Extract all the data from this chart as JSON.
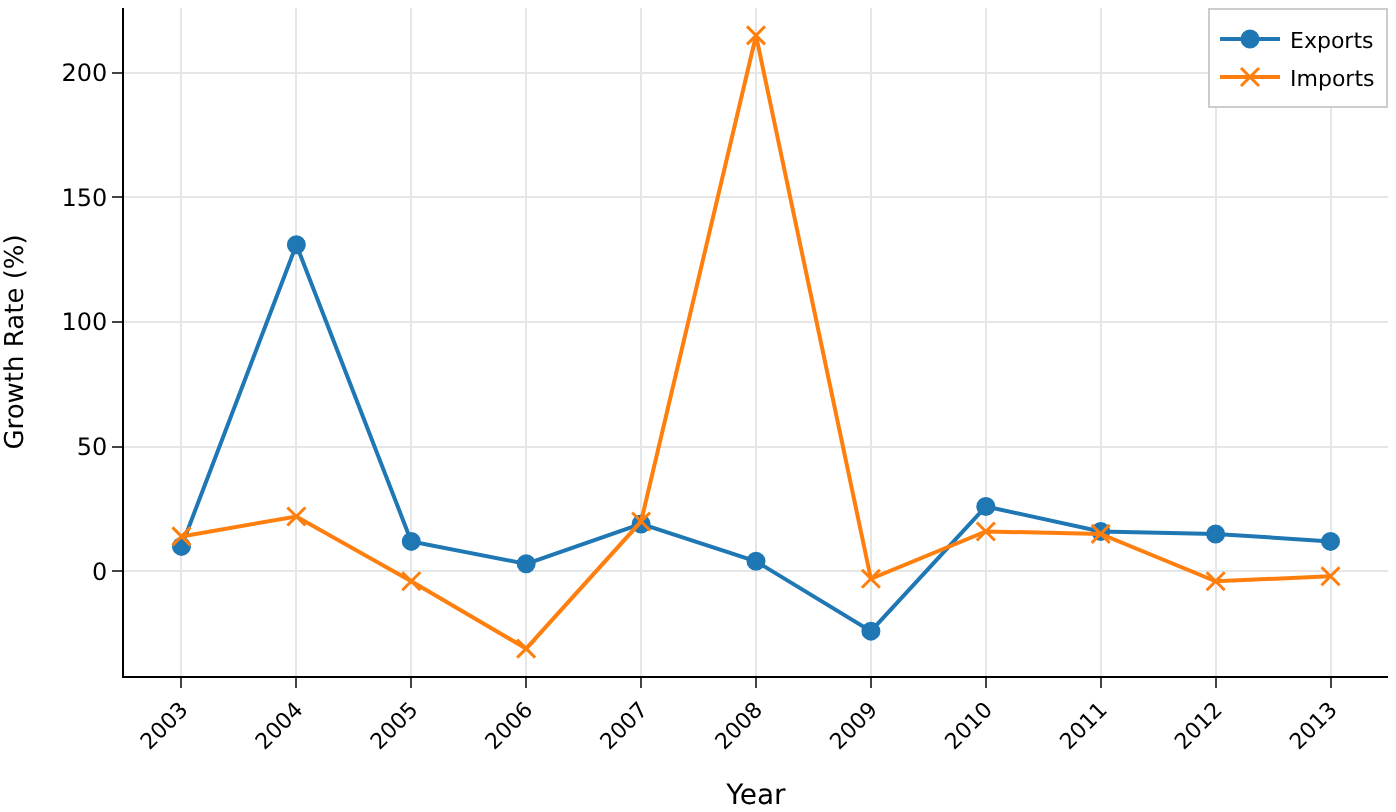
{
  "chart_data": {
    "type": "line",
    "xlabel": "Year",
    "ylabel": "Growth Rate (%)",
    "categories": [
      "2003",
      "2004",
      "2005",
      "2006",
      "2007",
      "2008",
      "2009",
      "2010",
      "2011",
      "2012",
      "2013"
    ],
    "series": [
      {
        "name": "Exports",
        "color": "#1f77b4",
        "marker": "circle",
        "values": [
          10,
          131,
          12,
          3,
          19,
          4,
          -24,
          26,
          16,
          15,
          12
        ]
      },
      {
        "name": "Imports",
        "color": "#ff7f0e",
        "marker": "cross",
        "values": [
          14,
          22,
          -4,
          -31,
          20,
          215,
          -3,
          16,
          15,
          -4,
          -2
        ]
      }
    ],
    "ylim": [
      -42,
      226
    ],
    "yticks": [
      0,
      50,
      100,
      150,
      200
    ],
    "grid": true,
    "legend": "top right",
    "line_style": "solid"
  }
}
